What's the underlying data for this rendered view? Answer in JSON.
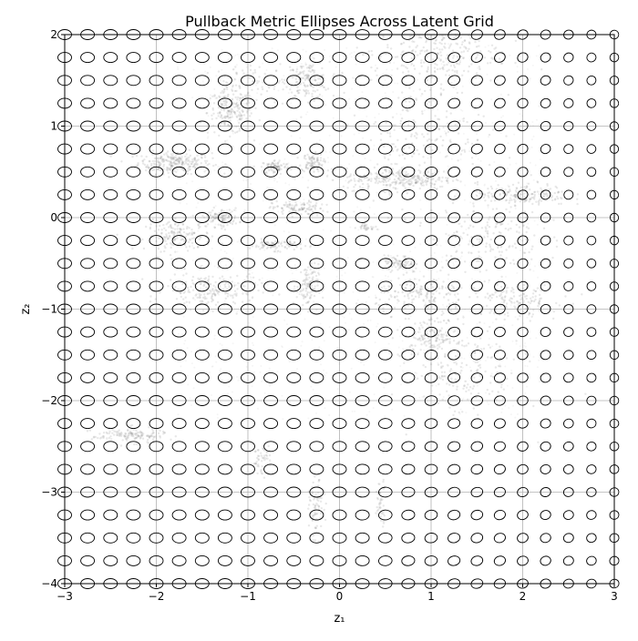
{
  "chart_data": {
    "type": "scatter",
    "title": "Pullback Metric Ellipses Across Latent Grid",
    "xlabel": "z₁",
    "ylabel": "z₂",
    "xlim": [
      -3,
      3
    ],
    "ylim": [
      -4,
      2
    ],
    "grid": true,
    "x_ticks": [
      -3,
      -2,
      -1,
      0,
      1,
      2,
      3
    ],
    "y_ticks": [
      -4,
      -3,
      -2,
      -1,
      0,
      1,
      2
    ],
    "x_tick_labels": [
      "−3",
      "−2",
      "−1",
      "0",
      "1",
      "2",
      "3"
    ],
    "y_tick_labels": [
      "−4",
      "−3",
      "−2",
      "−1",
      "0",
      "1",
      "2"
    ],
    "ellipse_grid": {
      "x_start": -3,
      "x_end": 3,
      "y_start": -4,
      "y_end": 2,
      "step": 0.25
    },
    "ellipse_color": "#000000",
    "point_color": "#7f7f7f",
    "point_clusters": [
      {
        "cx": -1.8,
        "cy": 0.6,
        "sx": 0.2,
        "sy": 0.06,
        "n": 260
      },
      {
        "cx": -1.2,
        "cy": 1.15,
        "sx": 0.12,
        "sy": 0.12,
        "n": 180
      },
      {
        "cx": -0.35,
        "cy": 1.5,
        "sx": 0.12,
        "sy": 0.1,
        "n": 160
      },
      {
        "cx": -0.7,
        "cy": 0.55,
        "sx": 0.08,
        "sy": 0.04,
        "n": 90
      },
      {
        "cx": -0.3,
        "cy": 0.6,
        "sx": 0.06,
        "sy": 0.05,
        "n": 90
      },
      {
        "cx": -0.45,
        "cy": 0.1,
        "sx": 0.14,
        "sy": 0.04,
        "n": 110
      },
      {
        "cx": -1.3,
        "cy": 0.0,
        "sx": 0.1,
        "sy": 0.05,
        "n": 110
      },
      {
        "cx": -1.75,
        "cy": -0.2,
        "sx": 0.18,
        "sy": 0.08,
        "n": 160
      },
      {
        "cx": -0.7,
        "cy": -0.3,
        "sx": 0.14,
        "sy": 0.03,
        "n": 90
      },
      {
        "cx": -1.4,
        "cy": -0.8,
        "sx": 0.25,
        "sy": 0.1,
        "n": 200
      },
      {
        "cx": -0.35,
        "cy": -0.75,
        "sx": 0.06,
        "sy": 0.12,
        "n": 110
      },
      {
        "cx": 0.65,
        "cy": 0.42,
        "sx": 0.3,
        "sy": 0.06,
        "n": 260
      },
      {
        "cx": 0.9,
        "cy": 0.9,
        "sx": 0.35,
        "sy": 0.3,
        "n": 200
      },
      {
        "cx": 1.05,
        "cy": 1.8,
        "sx": 0.35,
        "sy": 0.18,
        "n": 260
      },
      {
        "cx": 2.0,
        "cy": 0.25,
        "sx": 0.25,
        "sy": 0.06,
        "n": 180
      },
      {
        "cx": 1.6,
        "cy": -0.2,
        "sx": 0.3,
        "sy": 0.2,
        "n": 180
      },
      {
        "cx": 0.65,
        "cy": -0.5,
        "sx": 0.08,
        "sy": 0.04,
        "n": 80
      },
      {
        "cx": 0.9,
        "cy": -0.85,
        "sx": 0.25,
        "sy": 0.1,
        "n": 170
      },
      {
        "cx": 1.9,
        "cy": -0.9,
        "sx": 0.25,
        "sy": 0.1,
        "n": 150
      },
      {
        "cx": 1.0,
        "cy": -1.3,
        "sx": 0.15,
        "sy": 0.1,
        "n": 140
      },
      {
        "cx": 1.4,
        "cy": -1.7,
        "sx": 0.3,
        "sy": 0.25,
        "n": 170
      },
      {
        "cx": -2.3,
        "cy": -2.38,
        "sx": 0.2,
        "sy": 0.04,
        "n": 140
      },
      {
        "cx": -0.85,
        "cy": -2.65,
        "sx": 0.05,
        "sy": 0.08,
        "n": 50
      },
      {
        "cx": -0.25,
        "cy": -3.2,
        "sx": 0.04,
        "sy": 0.15,
        "n": 70
      },
      {
        "cx": 0.45,
        "cy": -3.1,
        "sx": 0.03,
        "sy": 0.12,
        "n": 40
      },
      {
        "cx": 0.3,
        "cy": -0.1,
        "sx": 0.05,
        "sy": 0.02,
        "n": 30
      },
      {
        "cx": -1.0,
        "cy": 1.4,
        "sx": 0.2,
        "sy": 0.15,
        "n": 90
      }
    ]
  }
}
